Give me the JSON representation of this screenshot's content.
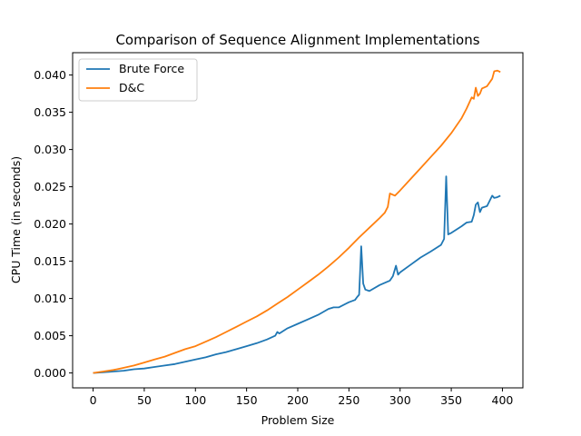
{
  "chart_data": {
    "type": "line",
    "title": "Comparison of Sequence Alignment Implementations",
    "xlabel": "Problem Size",
    "ylabel": "CPU Time (in seconds)",
    "xlim": [
      -20,
      420
    ],
    "ylim": [
      -0.002,
      0.043
    ],
    "xticks": [
      0,
      50,
      100,
      150,
      200,
      250,
      300,
      350,
      400
    ],
    "yticks": [
      0.0,
      0.005,
      0.01,
      0.015,
      0.02,
      0.025,
      0.03,
      0.035,
      0.04
    ],
    "ytick_labels": [
      "0.000",
      "0.005",
      "0.010",
      "0.015",
      "0.020",
      "0.025",
      "0.030",
      "0.035",
      "0.040"
    ],
    "grid": false,
    "legend_position": "top-left",
    "series": [
      {
        "name": "Brute Force",
        "color": "#1f77b4",
        "x": [
          0,
          10,
          20,
          30,
          40,
          50,
          60,
          70,
          80,
          90,
          100,
          110,
          120,
          130,
          140,
          150,
          160,
          170,
          178,
          180,
          182,
          190,
          200,
          210,
          220,
          230,
          235,
          240,
          250,
          256,
          258,
          260,
          262,
          264,
          266,
          270,
          280,
          290,
          293,
          296,
          298,
          300,
          310,
          320,
          330,
          340,
          343,
          345,
          347,
          350,
          360,
          365,
          370,
          372,
          374,
          376,
          378,
          380,
          385,
          390,
          392,
          395,
          398
        ],
        "y": [
          0.0,
          0.0001,
          0.0002,
          0.0003,
          0.0005,
          0.0006,
          0.0008,
          0.001,
          0.0012,
          0.0015,
          0.0018,
          0.0021,
          0.0025,
          0.0028,
          0.0032,
          0.0036,
          0.004,
          0.0045,
          0.005,
          0.0055,
          0.0053,
          0.006,
          0.0066,
          0.0072,
          0.0078,
          0.0086,
          0.0088,
          0.0088,
          0.0095,
          0.0098,
          0.0102,
          0.0105,
          0.017,
          0.012,
          0.0112,
          0.011,
          0.0118,
          0.0124,
          0.013,
          0.0144,
          0.0132,
          0.0135,
          0.0145,
          0.0155,
          0.0163,
          0.0172,
          0.018,
          0.0264,
          0.0186,
          0.0188,
          0.0197,
          0.0202,
          0.0203,
          0.0212,
          0.0226,
          0.0229,
          0.0216,
          0.0222,
          0.0224,
          0.0238,
          0.0235,
          0.0236,
          0.0238
        ]
      },
      {
        "name": "D&C",
        "color": "#ff7f0e",
        "x": [
          0,
          10,
          20,
          30,
          40,
          50,
          60,
          70,
          80,
          90,
          100,
          110,
          120,
          130,
          140,
          150,
          160,
          170,
          180,
          190,
          200,
          210,
          220,
          230,
          240,
          250,
          260,
          270,
          280,
          285,
          288,
          290,
          295,
          300,
          310,
          320,
          330,
          340,
          350,
          360,
          365,
          370,
          372,
          374,
          376,
          378,
          380,
          385,
          390,
          392,
          395,
          398
        ],
        "y": [
          0.0,
          0.0002,
          0.0004,
          0.0007,
          0.001,
          0.0014,
          0.0018,
          0.0022,
          0.0027,
          0.0032,
          0.0036,
          0.0042,
          0.0048,
          0.0055,
          0.0062,
          0.0069,
          0.0076,
          0.0084,
          0.0093,
          0.0102,
          0.0112,
          0.0122,
          0.0132,
          0.0143,
          0.0155,
          0.0168,
          0.0182,
          0.0195,
          0.0208,
          0.0215,
          0.0223,
          0.0241,
          0.0238,
          0.0245,
          0.026,
          0.0275,
          0.029,
          0.0305,
          0.0322,
          0.0342,
          0.0355,
          0.037,
          0.0368,
          0.0383,
          0.0372,
          0.0375,
          0.0382,
          0.0385,
          0.0395,
          0.0405,
          0.0406,
          0.0404
        ]
      }
    ]
  }
}
